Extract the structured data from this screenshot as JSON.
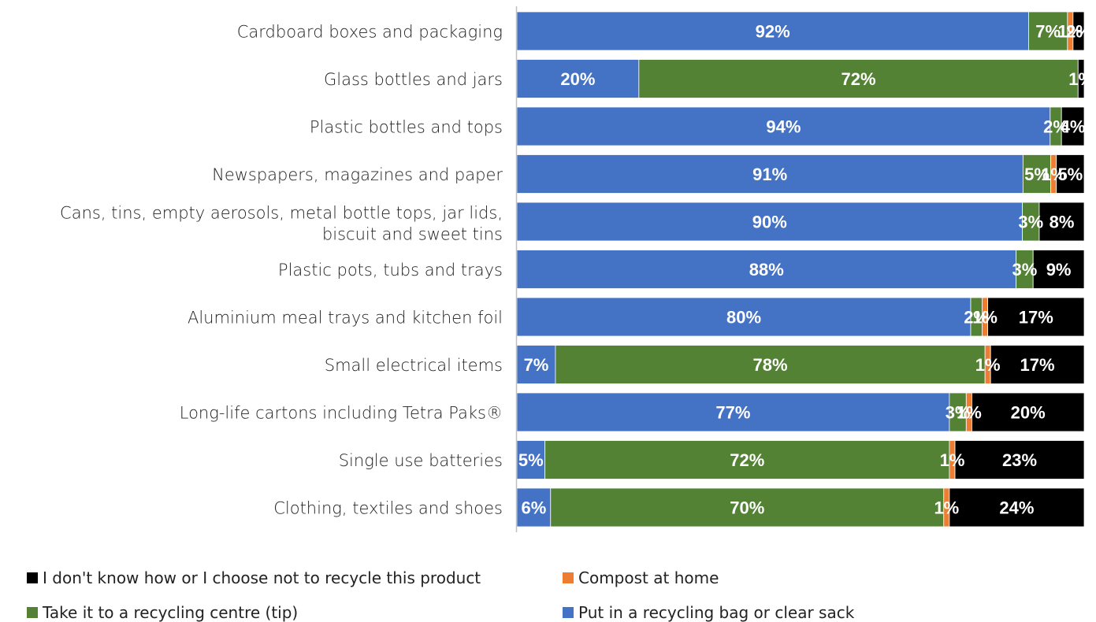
{
  "chart_data": {
    "type": "bar",
    "orientation": "horizontal",
    "stacked": true,
    "categories": [
      [
        "Cardboard boxes and packaging"
      ],
      [
        "Glass bottles and jars"
      ],
      [
        "Plastic bottles and tops"
      ],
      [
        "Newspapers, magazines and paper"
      ],
      [
        "Cans, tins, empty aerosols, metal bottle tops, jar lids,",
        "biscuit and sweet tins"
      ],
      [
        "Plastic pots, tubs and trays"
      ],
      [
        "Aluminium meal trays and kitchen foil"
      ],
      [
        "Small electrical items"
      ],
      [
        "Long-life cartons including Tetra Paks®"
      ],
      [
        "Single use batteries"
      ],
      [
        "Clothing, textiles and shoes"
      ]
    ],
    "series": [
      {
        "name": "Put in a recycling bag or clear sack",
        "color": "#4472C4",
        "values": [
          92,
          20,
          94,
          91,
          90,
          88,
          80,
          7,
          77,
          5,
          6
        ],
        "labels": [
          "92%",
          "20%",
          "94%",
          "91%",
          "90%",
          "88%",
          "80%",
          "7%",
          "77%",
          "5%",
          "6%"
        ]
      },
      {
        "name": "Take it to a recycling centre (tip)",
        "color": "#548235",
        "values": [
          7,
          72,
          2,
          5,
          3,
          3,
          2,
          78,
          3,
          72,
          70
        ],
        "labels": [
          "7%",
          "72%",
          "2%",
          "5%",
          "3%",
          "3%",
          "2%",
          "78%",
          "3%",
          "72%",
          "70%"
        ]
      },
      {
        "name": "Compost at home",
        "color": "#ED7D31",
        "values": [
          1,
          0,
          0,
          1,
          0,
          0,
          1,
          1,
          1,
          1,
          1
        ],
        "labels": [
          "1%",
          "",
          "",
          "1%",
          "",
          "",
          "1%",
          "1%",
          "1%",
          "1%",
          "1%"
        ]
      },
      {
        "name": "I don't know how or I choose not to recycle this product",
        "color": "#000000",
        "values": [
          2,
          1,
          4,
          5,
          8,
          9,
          17,
          17,
          20,
          23,
          24
        ],
        "labels": [
          "2%",
          "1%",
          "4%",
          "5%",
          "8%",
          "9%",
          "17%",
          "17%",
          "20%",
          "23%",
          "24%"
        ]
      }
    ],
    "xlim": [
      0,
      100
    ],
    "grid": false,
    "legend_position": "bottom",
    "legend_order": [
      "I don't know how or I choose not to recycle this product",
      "Compost at home",
      "Take it to a recycling centre (tip)",
      "Put in a recycling bag or clear sack"
    ]
  }
}
